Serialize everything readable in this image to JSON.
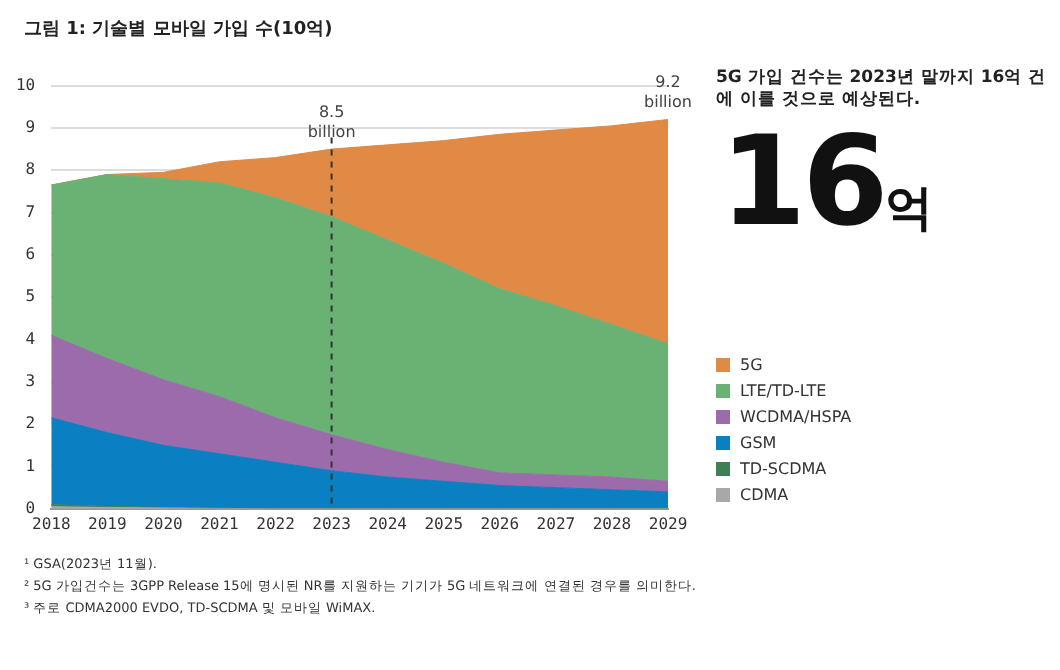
{
  "chart_data": {
    "type": "area",
    "title": "그림 1: 기술별 모바일 가입 수(10억)",
    "categories": [
      "2018",
      "2019",
      "2020",
      "2021",
      "2022",
      "2023",
      "2024",
      "2025",
      "2026",
      "2027",
      "2028",
      "2029"
    ],
    "series": [
      {
        "name": "CDMA",
        "color": "#a8a8a8",
        "values": [
          0.05,
          0.03,
          0.02,
          0.01,
          0,
          0,
          0,
          0,
          0,
          0,
          0,
          0
        ]
      },
      {
        "name": "TD-SCDMA",
        "color": "#3f7f55",
        "values": [
          0.05,
          0.03,
          0.01,
          0,
          0,
          0,
          0,
          0,
          0,
          0,
          0,
          0
        ]
      },
      {
        "name": "GSM",
        "color": "#0a7fc1",
        "values": [
          2.05,
          1.74,
          1.47,
          1.29,
          1.1,
          0.9,
          0.75,
          0.65,
          0.55,
          0.5,
          0.45,
          0.4
        ]
      },
      {
        "name": "WCDMA/HSPA",
        "color": "#9c6bab",
        "values": [
          1.95,
          1.75,
          1.55,
          1.35,
          1.05,
          0.85,
          0.65,
          0.45,
          0.3,
          0.3,
          0.3,
          0.25
        ]
      },
      {
        "name": "LTE/TD-LTE",
        "color": "#6ab174",
        "values": [
          3.55,
          4.35,
          4.75,
          5.05,
          5.2,
          5.15,
          4.95,
          4.7,
          4.35,
          4.0,
          3.6,
          3.25
        ]
      },
      {
        "name": "5G",
        "color": "#e08a45",
        "values": [
          0,
          0,
          0.15,
          0.5,
          0.95,
          1.6,
          2.25,
          2.9,
          3.65,
          4.15,
          4.7,
          5.3
        ]
      }
    ],
    "stacked": true,
    "ylim": [
      0,
      10
    ],
    "yticks": [
      0,
      1,
      2,
      3,
      4,
      5,
      6,
      7,
      8,
      9,
      10
    ],
    "grid": "y",
    "legend": "right",
    "ref_lines": [
      {
        "axis": "x",
        "value": "2023",
        "line_style": "dashed",
        "color": "#333333"
      }
    ],
    "annotations": [
      {
        "text": "8.5 billion",
        "x": "2023",
        "y": 8.5
      },
      {
        "text": "9.2 billion",
        "x": "2029",
        "y": 9.2
      },
      "5G 가입 건수는 2023년 말까지 16억 건에 이를 것으로 예상된다.",
      "16억",
      "¹ GSA(2023년 11월).",
      "² 5G 가입건수는 3GPP Release 15에 명시된 NR를 지원하는 기기가 5G 네트워크에 연결된 경우를 의미한다.",
      "³ 주로 CDMA2000 EVDO, TD-SCDMA 및 모바일 WiMAX."
    ]
  }
}
